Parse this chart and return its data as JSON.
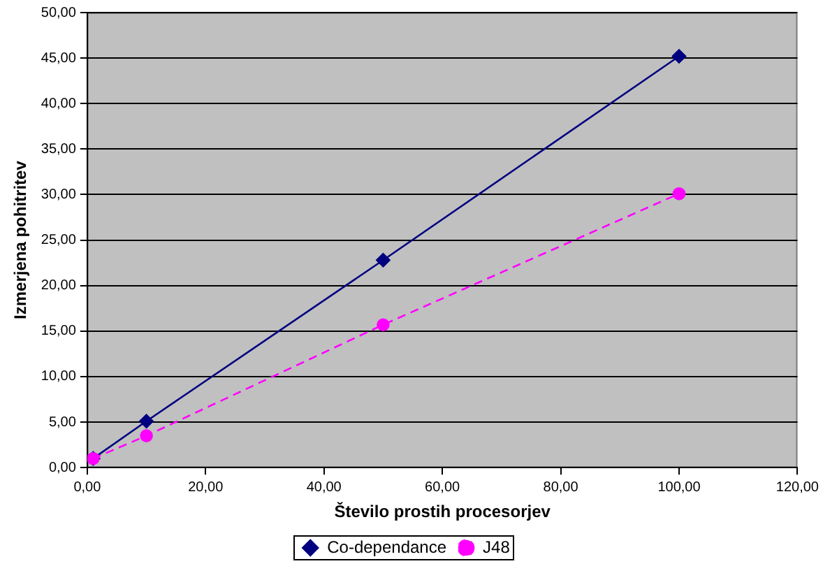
{
  "chart_data": {
    "type": "line",
    "xlabel": "Število prostih procesorjev",
    "ylabel": "Izmerjena pohitritev",
    "x": [
      1,
      10,
      50,
      100
    ],
    "series": [
      {
        "name": "Co-dependance",
        "color": "#000080",
        "values": [
          1.0,
          5.1,
          22.8,
          45.2
        ],
        "marker": "diamond",
        "line_style": "solid"
      },
      {
        "name": "J48",
        "color": "#ff00ff",
        "values": [
          1.0,
          3.5,
          15.7,
          30.1
        ],
        "marker": "circle",
        "line_style": "dashed"
      }
    ],
    "xlim": [
      0,
      120
    ],
    "xticks": [
      {
        "value": 0,
        "label": "0,00"
      },
      {
        "value": 20,
        "label": "20,00"
      },
      {
        "value": 40,
        "label": "40,00"
      },
      {
        "value": 60,
        "label": "60,00"
      },
      {
        "value": 80,
        "label": "80,00"
      },
      {
        "value": 100,
        "label": "100,00"
      },
      {
        "value": 120,
        "label": "120,00"
      }
    ],
    "ylim": [
      0,
      50
    ],
    "yticks": [
      {
        "value": 0,
        "label": "0,00"
      },
      {
        "value": 5,
        "label": "5,00"
      },
      {
        "value": 10,
        "label": "10,00"
      },
      {
        "value": 15,
        "label": "15,00"
      },
      {
        "value": 20,
        "label": "20,00"
      },
      {
        "value": 25,
        "label": "25,00"
      },
      {
        "value": 30,
        "label": "30,00"
      },
      {
        "value": 35,
        "label": "35,00"
      },
      {
        "value": 40,
        "label": "40,00"
      },
      {
        "value": 45,
        "label": "45,00"
      },
      {
        "value": 50,
        "label": "50,00"
      }
    ],
    "grid": "y",
    "legend": "bottom"
  }
}
